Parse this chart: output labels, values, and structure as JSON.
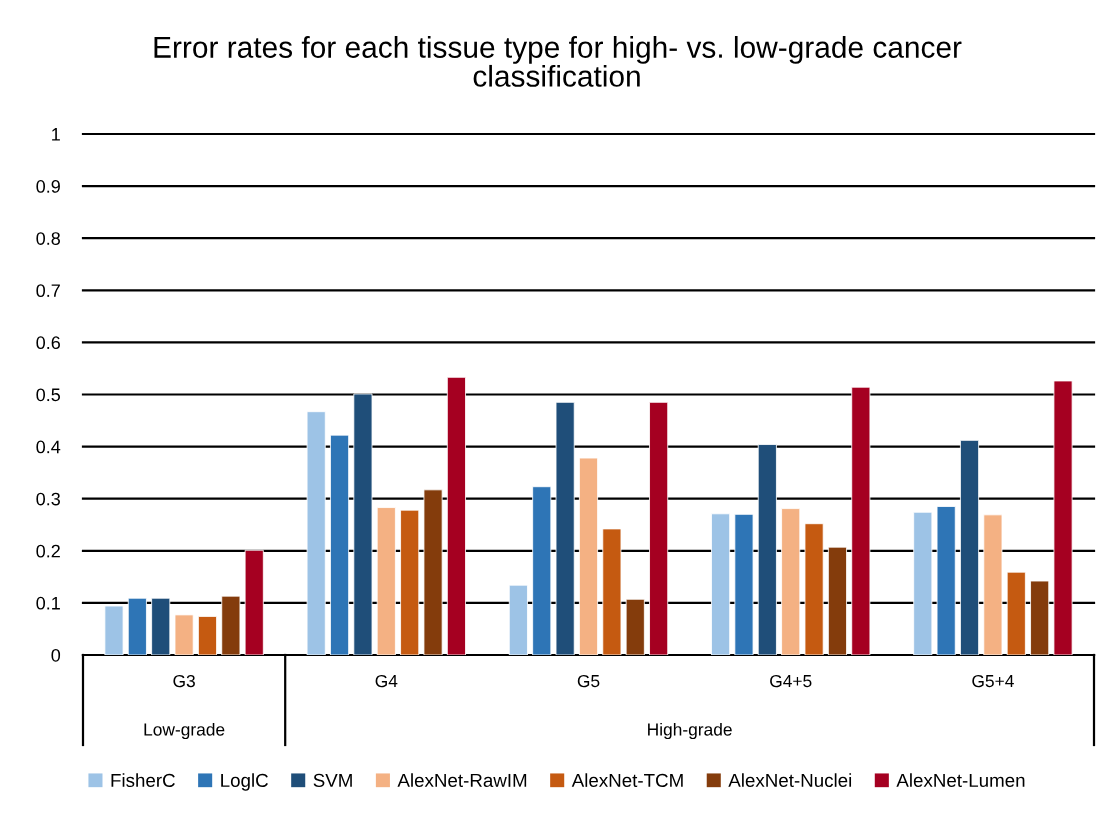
{
  "chart_data": {
    "type": "bar",
    "title": "Error rates for each tissue type for high- vs. low-grade cancer classification",
    "categories": [
      "G3",
      "G4",
      "G5",
      "G4+5",
      "G5+4"
    ],
    "annotations": [
      "Low-grade",
      "High-grade"
    ],
    "series": [
      {
        "name": "FisherC",
        "color": "#9dc3e6",
        "values": [
          0.094,
          0.467,
          0.134,
          0.271,
          0.274
        ]
      },
      {
        "name": "LoglC",
        "color": "#2e75b6",
        "values": [
          0.109,
          0.422,
          0.323,
          0.27,
          0.285
        ]
      },
      {
        "name": "SVM",
        "color": "#1f4e79",
        "values": [
          0.109,
          0.501,
          0.485,
          0.404,
          0.412
        ]
      },
      {
        "name": "AlexNet-RawIM",
        "color": "#f4b183",
        "values": [
          0.077,
          0.283,
          0.378,
          0.281,
          0.269
        ]
      },
      {
        "name": "AlexNet-TCM",
        "color": "#c55a11",
        "values": [
          0.074,
          0.278,
          0.242,
          0.252,
          0.159
        ]
      },
      {
        "name": "AlexNet-Nuclei",
        "color": "#843c0c",
        "values": [
          0.113,
          0.317,
          0.107,
          0.207,
          0.142
        ]
      },
      {
        "name": "AlexNet-Lumen",
        "color": "#a50021",
        "values": [
          0.201,
          0.533,
          0.485,
          0.514,
          0.526
        ]
      }
    ],
    "ylim": [
      0,
      1
    ],
    "yticks": [
      0,
      0.1,
      0.2,
      0.3,
      0.4,
      0.5,
      0.6,
      0.7,
      0.8,
      0.9,
      1
    ],
    "grid": "y",
    "legend": "bottom"
  }
}
